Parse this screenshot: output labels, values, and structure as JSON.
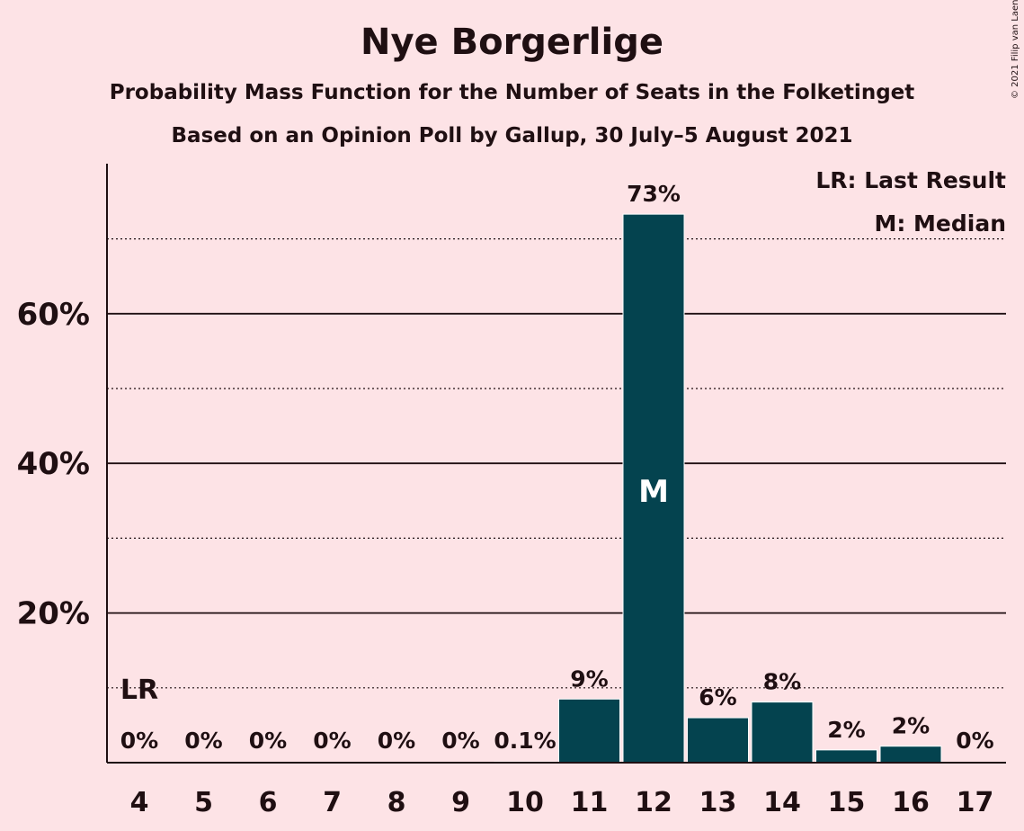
{
  "title": "Nye Borgerlige",
  "subtitle": "Probability Mass Function for the Number of Seats in the Folketinget",
  "subtitle2": "Based on an Opinion Poll by Gallup, 30 July–5 August 2021",
  "copyright": "© 2021 Filip van Laenen",
  "legend": {
    "last_result": "LR: Last Result",
    "median": "M: Median"
  },
  "colors": {
    "background": "#fde3e6",
    "bar": "#04434f",
    "text": "#1f0f12"
  },
  "chart_data": {
    "type": "bar",
    "categories": [
      "4",
      "5",
      "6",
      "7",
      "8",
      "9",
      "10",
      "11",
      "12",
      "13",
      "14",
      "15",
      "16",
      "17"
    ],
    "values": [
      0,
      0,
      0,
      0,
      0,
      0,
      0.1,
      8.5,
      73.3,
      6.0,
      8.1,
      1.7,
      2.2,
      0
    ],
    "data_labels": [
      "0%",
      "0%",
      "0%",
      "0%",
      "0%",
      "0%",
      "0.1%",
      "9%",
      "73%",
      "6%",
      "8%",
      "2%",
      "2%",
      "0%"
    ],
    "y_ticks": [
      {
        "value": 20,
        "label": "20%"
      },
      {
        "value": 40,
        "label": "40%"
      },
      {
        "value": 60,
        "label": "60%"
      }
    ],
    "dotted_gridlines": [
      10,
      30,
      50,
      70
    ],
    "ylim": [
      0,
      80
    ],
    "last_result": {
      "category": "4",
      "label": "LR",
      "level": 10
    },
    "median": {
      "category": "12",
      "label": "M"
    }
  }
}
